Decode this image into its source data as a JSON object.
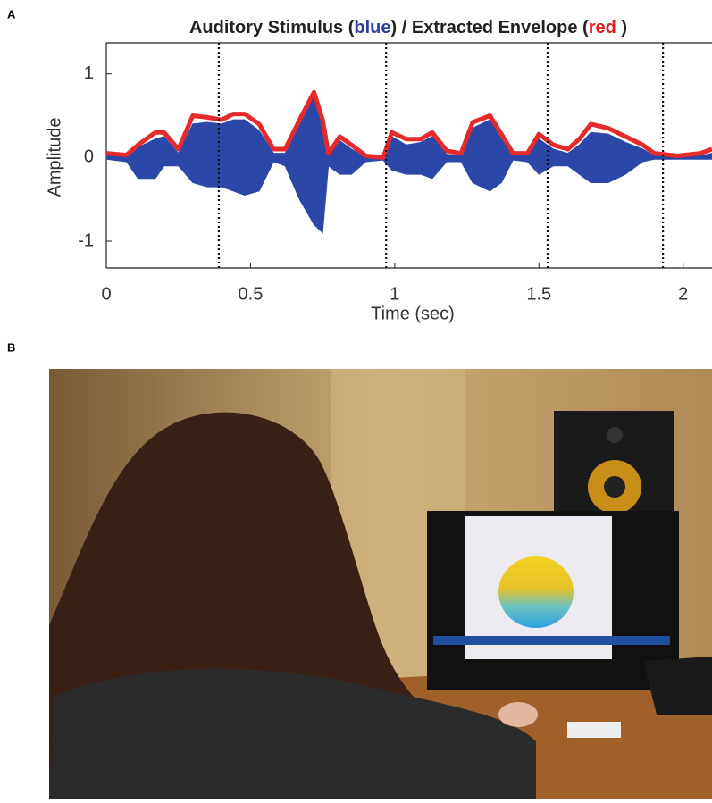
{
  "panels": [
    "A",
    "B"
  ],
  "chart_data": {
    "type": "line",
    "title": [
      "Auditory Stimulus (",
      "blue",
      ") / Extracted Envelope (",
      "red",
      " )"
    ],
    "title_colors": [
      "#222222",
      "#2b3f9e",
      "#222222",
      "#e02020",
      "#222222"
    ],
    "xlabel": "Time (sec)",
    "ylabel": "Amplitude",
    "xlim": [
      0,
      2.1
    ],
    "ylim": [
      -1.32,
      1.37
    ],
    "xticks": [
      0,
      0.5,
      1,
      1.5,
      2
    ],
    "yticks": [
      -1,
      0,
      1
    ],
    "markers": [
      0.39,
      0.97,
      1.53,
      1.93
    ],
    "x": [
      0,
      0.07,
      0.11,
      0.17,
      0.2,
      0.25,
      0.3,
      0.35,
      0.4,
      0.44,
      0.48,
      0.53,
      0.58,
      0.62,
      0.67,
      0.72,
      0.75,
      0.77,
      0.81,
      0.85,
      0.9,
      0.96,
      0.99,
      1.04,
      1.09,
      1.13,
      1.18,
      1.23,
      1.27,
      1.33,
      1.37,
      1.41,
      1.46,
      1.5,
      1.55,
      1.6,
      1.64,
      1.68,
      1.74,
      1.8,
      1.86,
      1.9,
      1.98,
      2.06,
      2.1
    ],
    "series": [
      {
        "color": "#2b47a8",
        "upper": [
          0.02,
          0.02,
          0.12,
          0.22,
          0.25,
          0.05,
          0.4,
          0.42,
          0.4,
          0.45,
          0.45,
          0.32,
          0.05,
          0.05,
          0.38,
          0.72,
          0.4,
          0.02,
          0.2,
          0.1,
          0.0,
          -0.02,
          0.25,
          0.15,
          0.18,
          0.25,
          0.04,
          0.02,
          0.35,
          0.45,
          0.22,
          0.02,
          0.02,
          0.22,
          0.1,
          0.05,
          0.15,
          0.3,
          0.28,
          0.18,
          0.1,
          0.02,
          0.0,
          0.02,
          0.05
        ],
        "lower": [
          -0.02,
          -0.05,
          -0.25,
          -0.25,
          -0.1,
          -0.1,
          -0.3,
          -0.35,
          -0.35,
          -0.4,
          -0.45,
          -0.4,
          -0.05,
          -0.1,
          -0.5,
          -0.8,
          -0.9,
          -0.1,
          -0.2,
          -0.2,
          -0.05,
          -0.03,
          -0.15,
          -0.2,
          -0.2,
          -0.25,
          -0.05,
          -0.05,
          -0.3,
          -0.4,
          -0.3,
          -0.03,
          -0.05,
          -0.2,
          -0.1,
          -0.1,
          -0.2,
          -0.3,
          -0.3,
          -0.2,
          -0.05,
          -0.02,
          -0.02,
          -0.02,
          -0.02
        ]
      },
      {
        "color": "#e42a2a",
        "values": [
          0.05,
          0.03,
          0.15,
          0.3,
          0.3,
          0.1,
          0.5,
          0.48,
          0.45,
          0.52,
          0.52,
          0.4,
          0.1,
          0.1,
          0.45,
          0.78,
          0.45,
          0.05,
          0.25,
          0.15,
          0.02,
          0.0,
          0.3,
          0.22,
          0.22,
          0.3,
          0.08,
          0.05,
          0.42,
          0.5,
          0.28,
          0.05,
          0.05,
          0.28,
          0.15,
          0.1,
          0.22,
          0.4,
          0.35,
          0.25,
          0.15,
          0.05,
          0.02,
          0.05,
          0.1
        ]
      }
    ]
  }
}
